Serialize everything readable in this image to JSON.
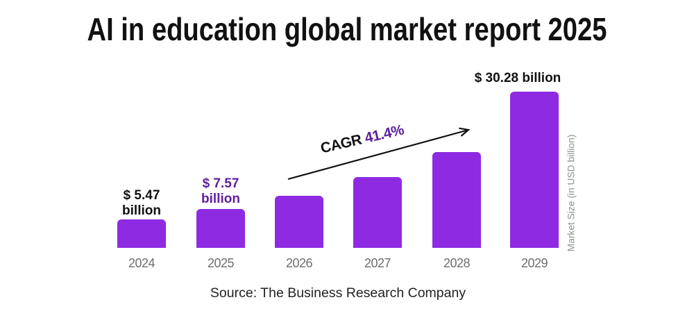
{
  "chart_data": {
    "type": "bar",
    "title": "AI in education global market report 2025",
    "categories": [
      "2024",
      "2025",
      "2026",
      "2027",
      "2028",
      "2029"
    ],
    "values": [
      5.47,
      7.57,
      10.1,
      13.7,
      18.6,
      30.28
    ],
    "bar_labels": [
      "$ 5.47\nbillion",
      "$ 7.57\nbillion",
      "",
      "",
      "",
      "$ 30.28 billion"
    ],
    "bar_label_colors": [
      "#111111",
      "#5E1F9F",
      "",
      "",
      "",
      "#111111"
    ],
    "bar_color": "#8E2BE2",
    "cagr": {
      "label": "CAGR",
      "value": "41.4%",
      "value_color": "#5E1F9F"
    },
    "ylabel": "Market Size (in USD billion)",
    "source": "Source: The Business Research Company",
    "xlabel": "",
    "ylim": [
      0,
      33
    ],
    "grid": false,
    "legend": "none"
  }
}
